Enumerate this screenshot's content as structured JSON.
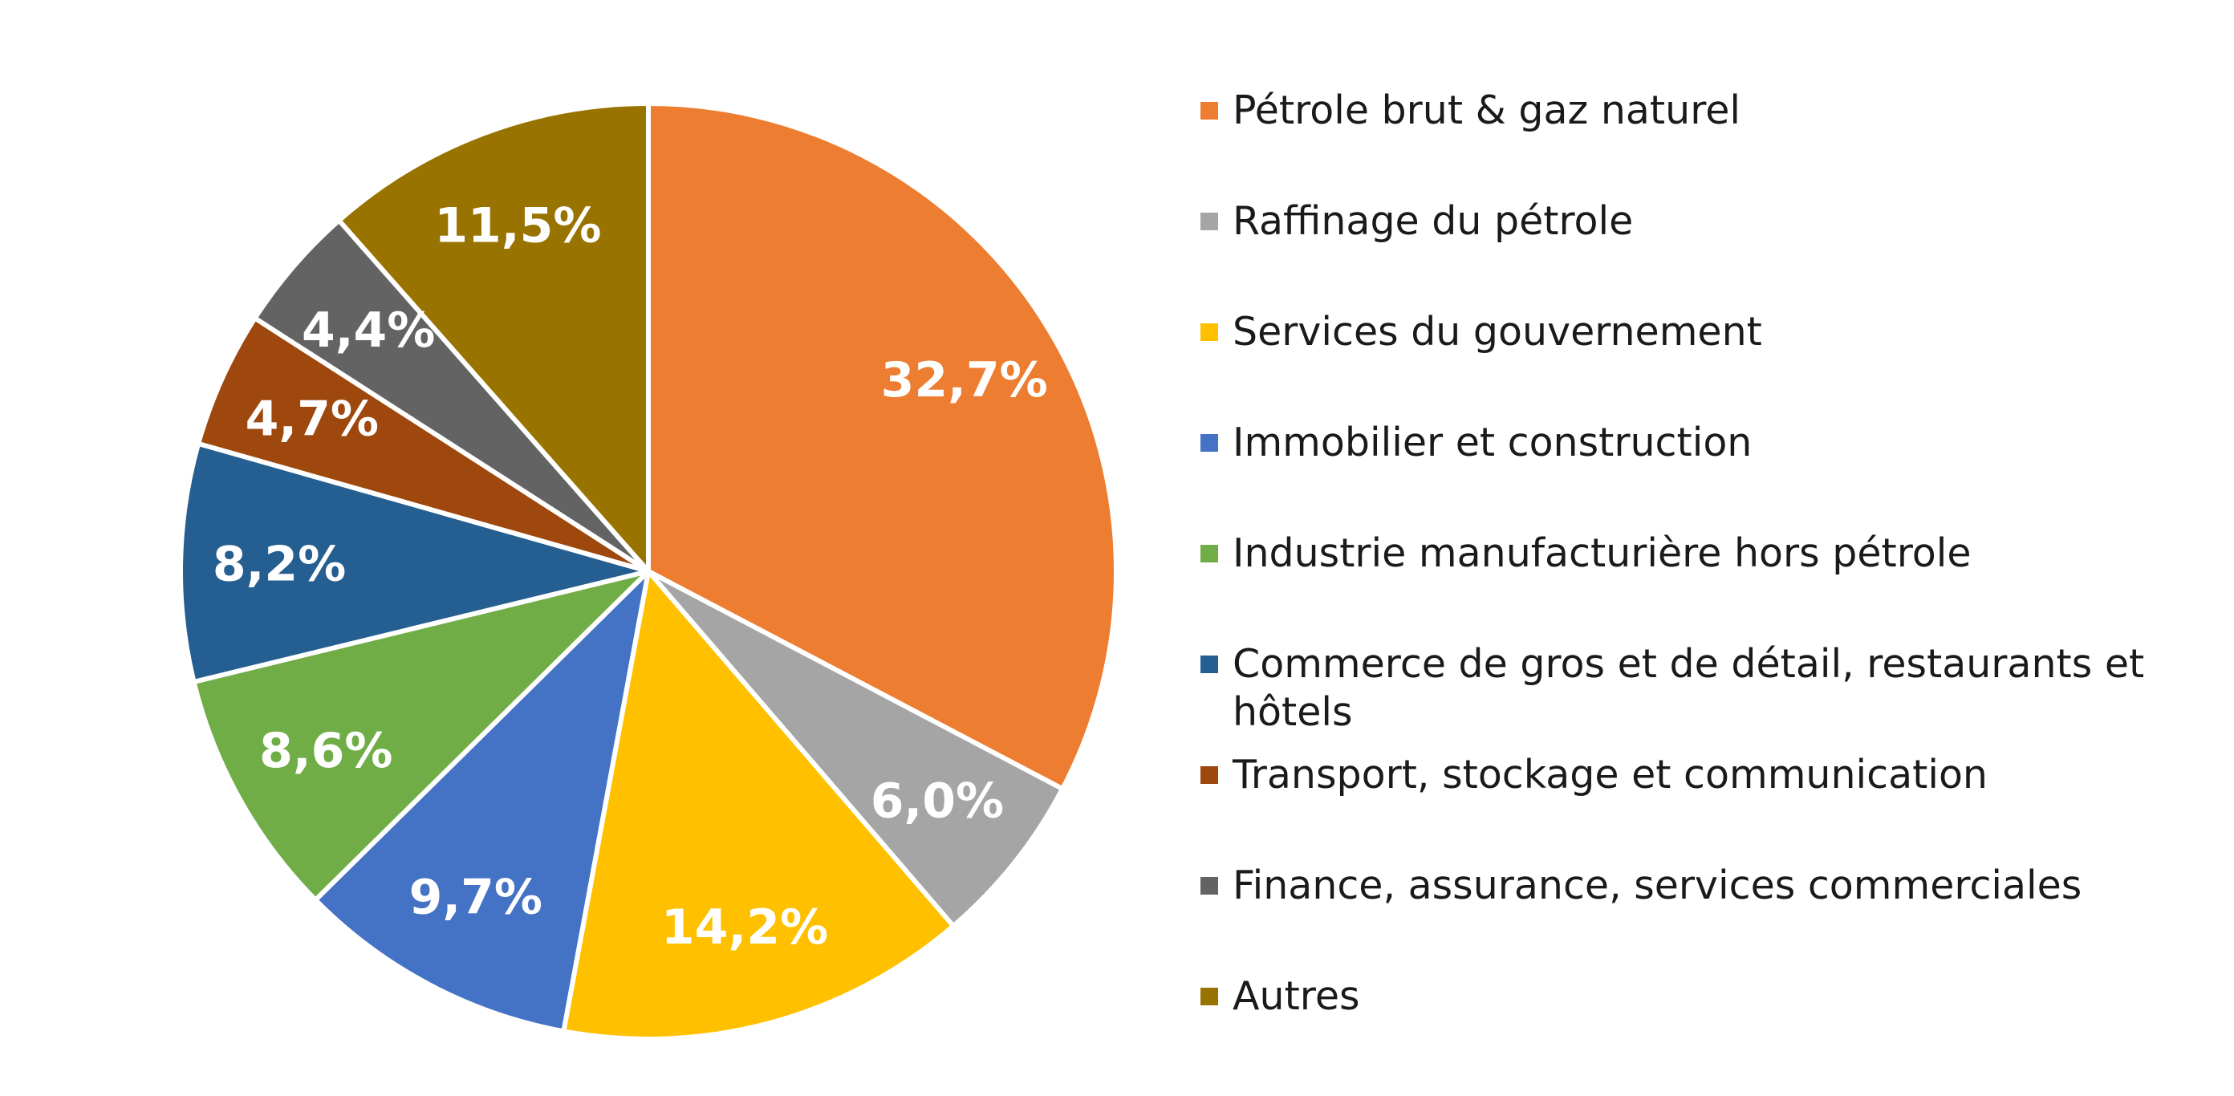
{
  "chart_data": {
    "type": "pie",
    "start_angle_deg": 0,
    "direction": "clockwise",
    "slices": [
      {
        "label": "Pétrole brut & gaz naturel",
        "value": 32.7,
        "display": "32,7%",
        "color": "#ED7D31"
      },
      {
        "label": "Raffinage du pétrole",
        "value": 6.0,
        "display": "6,0%",
        "color": "#A5A5A5"
      },
      {
        "label": "Services du gouvernement",
        "value": 14.2,
        "display": "14,2%",
        "color": "#FFC000"
      },
      {
        "label": "Immobilier et construction",
        "value": 9.7,
        "display": "9,7%",
        "color": "#4472C4"
      },
      {
        "label": "Industrie manufacturière hors pétrole",
        "value": 8.6,
        "display": "8,6%",
        "color": "#70AD47"
      },
      {
        "label": "Commerce de gros et de détail, restaurants et hôtels",
        "value": 8.2,
        "display": "8,2%",
        "color": "#255E91"
      },
      {
        "label": "Transport, stockage et communication",
        "value": 4.7,
        "display": "4,7%",
        "color": "#9E480E"
      },
      {
        "label": "Finance, assurance, services commerciales",
        "value": 4.4,
        "display": "4,4%",
        "color": "#636363"
      },
      {
        "label": "Autres",
        "value": 11.5,
        "display": "11,5%",
        "color": "#997300"
      }
    ],
    "legend": {
      "position": "right"
    }
  }
}
